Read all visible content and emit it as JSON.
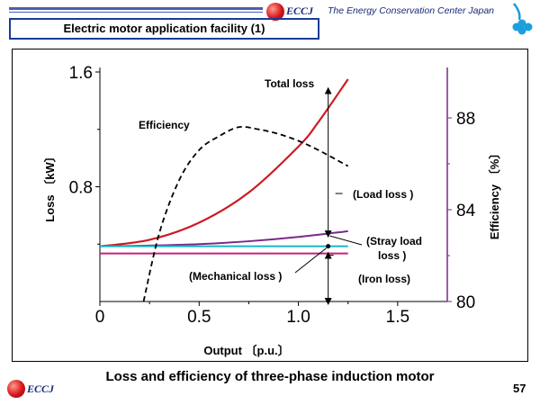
{
  "header": {
    "org_name": "The Energy Conservation Center Japan",
    "logo_text": "ECCJ",
    "slide_title": "Electric motor application facility (1)"
  },
  "footer": {
    "logo_text": "ECCJ",
    "caption": "Loss and efficiency of three-phase induction motor",
    "page_number": "57"
  },
  "chart_data": {
    "type": "line",
    "title": "",
    "xlabel": "Output 〔p.u.〕",
    "ylabel": "Loss 〔kW〕",
    "y2label": "Efficiency 〔%〕",
    "xlim": [
      0,
      1.75
    ],
    "ylim": [
      0,
      1.6
    ],
    "y2lim": [
      80,
      90
    ],
    "xticks": [
      "0",
      "0.5",
      "1.0",
      "1.5"
    ],
    "yticks": [
      "0.8",
      "1.6"
    ],
    "y2ticks": [
      "80",
      "84",
      "88"
    ],
    "grid": false,
    "colors": {
      "total": "#cc1b22",
      "stray": "#7a2a8a",
      "mechanical": "#18b8c8",
      "iron": "#c8207a",
      "efficiency": "#000000",
      "right_axis": "#7a2a8a"
    },
    "series": [
      {
        "key": "total",
        "axis": "left",
        "x": [
          0,
          0.25,
          0.5,
          0.75,
          1.0,
          1.1,
          1.25
        ],
        "values": [
          0.385,
          0.43,
          0.55,
          0.76,
          1.08,
          1.25,
          1.55
        ]
      },
      {
        "key": "stray",
        "axis": "left",
        "x": [
          0,
          0.25,
          0.5,
          0.75,
          1.0,
          1.25
        ],
        "values": [
          0.385,
          0.39,
          0.4,
          0.42,
          0.45,
          0.49
        ]
      },
      {
        "key": "mechanical",
        "axis": "left",
        "x": [
          0,
          1.25
        ],
        "values": [
          0.385,
          0.385
        ]
      },
      {
        "key": "iron",
        "axis": "left",
        "x": [
          0,
          1.25
        ],
        "values": [
          0.335,
          0.335
        ]
      },
      {
        "key": "efficiency",
        "axis": "right",
        "x": [
          0.22,
          0.3,
          0.4,
          0.5,
          0.6,
          0.7,
          0.8,
          0.9,
          1.0,
          1.1,
          1.25
        ],
        "values": [
          80.0,
          83.0,
          85.3,
          86.6,
          87.2,
          87.6,
          87.5,
          87.3,
          87.0,
          86.6,
          85.9
        ]
      }
    ],
    "annotations": {
      "total_loss": "Total loss",
      "efficiency": "Efficiency",
      "load_loss": "(Load loss )",
      "stray_load_loss_1": "(Stray load",
      "stray_load_loss_2": "loss )",
      "mechanical_loss": "(Mechanical loss )",
      "iron_loss": "(Iron loss)"
    },
    "marker_x": 1.15
  }
}
